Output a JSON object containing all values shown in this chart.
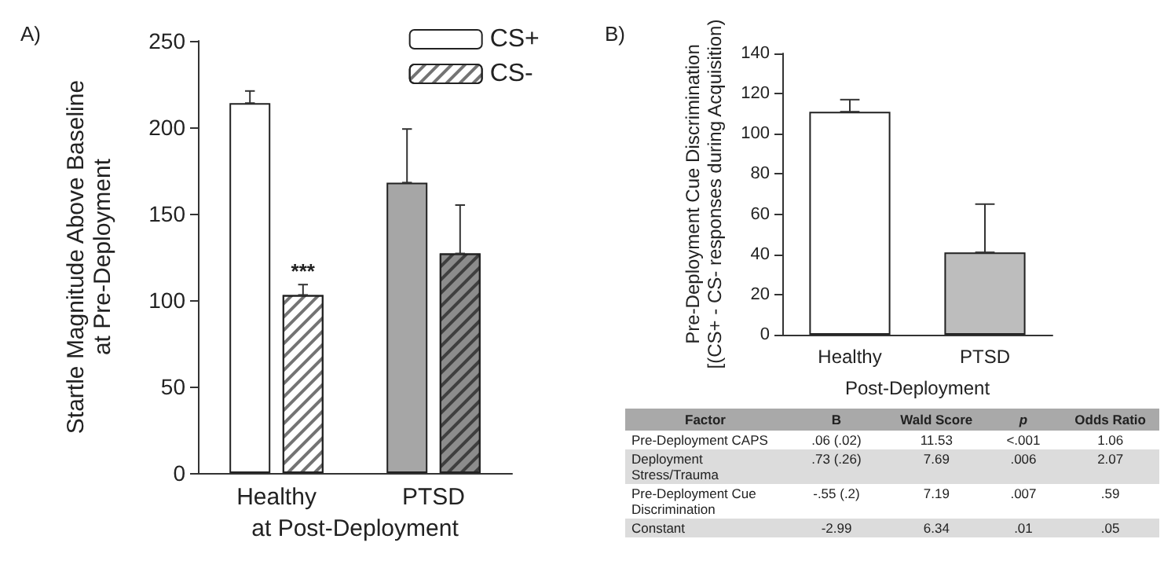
{
  "chart_data": [
    {
      "type": "bar",
      "title": "A)",
      "xlabel": "at Post-Deployment",
      "ylabel": "Startle Magnitude Above Baseline\nat Pre-Deployment",
      "categories": [
        "Healthy",
        "PTSD"
      ],
      "series": [
        {
          "name": "CS+",
          "color": "#ffffff",
          "colors": [
            "#ffffff",
            "#a6a6a6"
          ],
          "values": [
            214,
            168
          ],
          "errors": [
            [
              214,
              221
            ],
            [
              168,
              199
            ]
          ]
        },
        {
          "name": "CS-",
          "color": "#ffffff",
          "colors": [
            "#ffffff",
            "#8c8c8c"
          ],
          "values": [
            103,
            127
          ],
          "errors": [
            [
              103,
              109
            ],
            [
              127,
              155
            ]
          ]
        }
      ],
      "ylim": [
        0,
        250
      ],
      "yticks": [
        0,
        50,
        100,
        150,
        200,
        250
      ],
      "grid": false,
      "legend": "top right",
      "annotations": [
        {
          "text": "***",
          "x": "Healthy",
          "y": 109
        }
      ]
    },
    {
      "type": "bar",
      "title": "B)",
      "xlabel": "Post-Deployment",
      "ylabel": "Pre-Deployment Cue Discrimination\n[(CS+ - CS- responses during Acquisition)",
      "categories": [
        "Healthy",
        "PTSD"
      ],
      "values": [
        111,
        41
      ],
      "colors": [
        "#ffffff",
        "#bdbdbd"
      ],
      "errors": [
        [
          111,
          117
        ],
        [
          41,
          65
        ]
      ],
      "ylim": [
        0,
        140
      ],
      "yticks": [
        0,
        20,
        40,
        60,
        80,
        100,
        120,
        140
      ],
      "grid": false,
      "legend": false
    },
    {
      "type": "other",
      "categories": [
        "Factor",
        "B",
        "Wald Score",
        "p",
        "Odds Ratio"
      ],
      "cell_labels": [
        [
          "Pre-Deployment CAPS",
          ".06 (.02)",
          "11.53",
          "<.001",
          "1.06"
        ],
        [
          "Deployment Stress/Trauma",
          ".73 (.26)",
          "7.69",
          ".006",
          "2.07"
        ],
        [
          "Pre-Deployment Cue Discrimination",
          "-.55 (.2)",
          "7.19",
          ".007",
          ".59"
        ],
        [
          "Constant",
          "-2.99",
          "6.34",
          ".01",
          ".05"
        ]
      ]
    }
  ]
}
